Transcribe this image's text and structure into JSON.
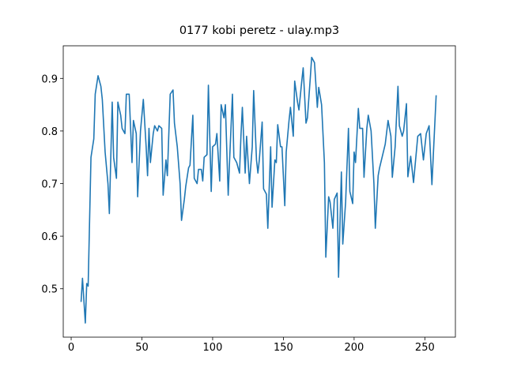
{
  "chart_data": {
    "type": "line",
    "title": "0177 kobi peretz - ulay.mp3",
    "color": "#1f77b4",
    "x": [
      7,
      8,
      10,
      11,
      12,
      14,
      16,
      17,
      19,
      21,
      22,
      24,
      26,
      27,
      29,
      30,
      32,
      33,
      35,
      36,
      38,
      39,
      41,
      43,
      44,
      46,
      47,
      49,
      51,
      53,
      54,
      55,
      56,
      58,
      59,
      61,
      62,
      64,
      65,
      67,
      68,
      70,
      72,
      73,
      75,
      77,
      78,
      80,
      81,
      83,
      84,
      86,
      87,
      89,
      90,
      92,
      93,
      94,
      96,
      97,
      99,
      100,
      102,
      103,
      105,
      106,
      108,
      109,
      111,
      112,
      114,
      115,
      117,
      119,
      120,
      121,
      123,
      124,
      126,
      128,
      129,
      131,
      132,
      133,
      135,
      136,
      138,
      139,
      141,
      142,
      144,
      145,
      146,
      148,
      149,
      151,
      152,
      154,
      155,
      157,
      158,
      160,
      161,
      163,
      164,
      166,
      167,
      169,
      170,
      172,
      174,
      175,
      177,
      179,
      180,
      182,
      183,
      185,
      186,
      188,
      189,
      191,
      192,
      194,
      196,
      197,
      199,
      200,
      201,
      203,
      204,
      206,
      207,
      209,
      210,
      212,
      214,
      215,
      217,
      218,
      222,
      224,
      226,
      227,
      229,
      231,
      232,
      234,
      235,
      237,
      238,
      240,
      242,
      245,
      247,
      249,
      251,
      253,
      255,
      258
    ],
    "values": [
      0.475,
      0.52,
      0.435,
      0.51,
      0.505,
      0.75,
      0.785,
      0.87,
      0.905,
      0.885,
      0.86,
      0.76,
      0.7,
      0.643,
      0.855,
      0.75,
      0.71,
      0.855,
      0.83,
      0.805,
      0.795,
      0.87,
      0.87,
      0.74,
      0.82,
      0.795,
      0.675,
      0.8,
      0.86,
      0.77,
      0.715,
      0.805,
      0.74,
      0.795,
      0.81,
      0.8,
      0.81,
      0.805,
      0.678,
      0.745,
      0.715,
      0.87,
      0.878,
      0.815,
      0.77,
      0.7,
      0.63,
      0.67,
      0.695,
      0.73,
      0.735,
      0.83,
      0.71,
      0.7,
      0.727,
      0.727,
      0.705,
      0.75,
      0.755,
      0.887,
      0.685,
      0.77,
      0.775,
      0.795,
      0.705,
      0.85,
      0.825,
      0.85,
      0.678,
      0.745,
      0.87,
      0.75,
      0.74,
      0.72,
      0.79,
      0.845,
      0.72,
      0.79,
      0.7,
      0.77,
      0.877,
      0.745,
      0.72,
      0.745,
      0.817,
      0.69,
      0.68,
      0.615,
      0.77,
      0.655,
      0.745,
      0.74,
      0.812,
      0.77,
      0.77,
      0.658,
      0.76,
      0.82,
      0.845,
      0.79,
      0.895,
      0.855,
      0.84,
      0.895,
      0.92,
      0.815,
      0.825,
      0.9,
      0.94,
      0.93,
      0.845,
      0.883,
      0.85,
      0.74,
      0.56,
      0.675,
      0.665,
      0.615,
      0.67,
      0.682,
      0.522,
      0.722,
      0.585,
      0.665,
      0.805,
      0.685,
      0.662,
      0.76,
      0.74,
      0.843,
      0.805,
      0.805,
      0.712,
      0.805,
      0.83,
      0.8,
      0.7,
      0.615,
      0.715,
      0.73,
      0.775,
      0.82,
      0.79,
      0.712,
      0.77,
      0.885,
      0.81,
      0.79,
      0.8,
      0.852,
      0.713,
      0.752,
      0.702,
      0.79,
      0.795,
      0.745,
      0.795,
      0.81,
      0.698,
      0.868
    ],
    "xlim": [
      -5.6,
      271.6
    ],
    "ylim": [
      0.408,
      0.962
    ],
    "xticks": [
      0,
      50,
      100,
      150,
      200,
      250
    ],
    "yticks": [
      0.5,
      0.6,
      0.7,
      0.8,
      0.9
    ]
  }
}
